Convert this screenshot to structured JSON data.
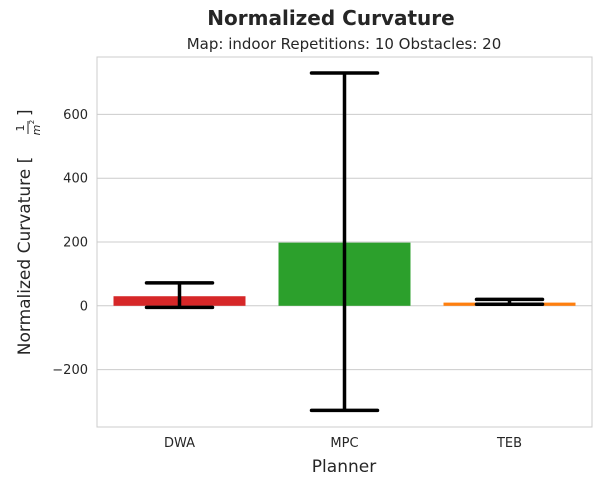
{
  "chart_data": {
    "type": "bar",
    "title": "Normalized Curvature",
    "subtitle": "Map: indoor Repetitions: 10 Obstacles: 20",
    "xlabel": "Planner",
    "ylabel": "Normalized Curvature",
    "ylabel_unit": {
      "numerator": "1",
      "denominator": "m",
      "exponent": "2"
    },
    "categories": [
      "DWA",
      "MPC",
      "TEB"
    ],
    "values": [
      30,
      198,
      10
    ],
    "error_low": [
      -5,
      -328,
      5
    ],
    "error_high": [
      72,
      730,
      20
    ],
    "colors": [
      "#d62728",
      "#2ca02c",
      "#ff7f0e"
    ],
    "ylim": [
      -380,
      780
    ],
    "yticks": [
      -200,
      0,
      200,
      400,
      600
    ],
    "ytick_labels": [
      "−200",
      "0",
      "200",
      "400",
      "600"
    ],
    "grid": "horizontal",
    "legend": "none"
  }
}
